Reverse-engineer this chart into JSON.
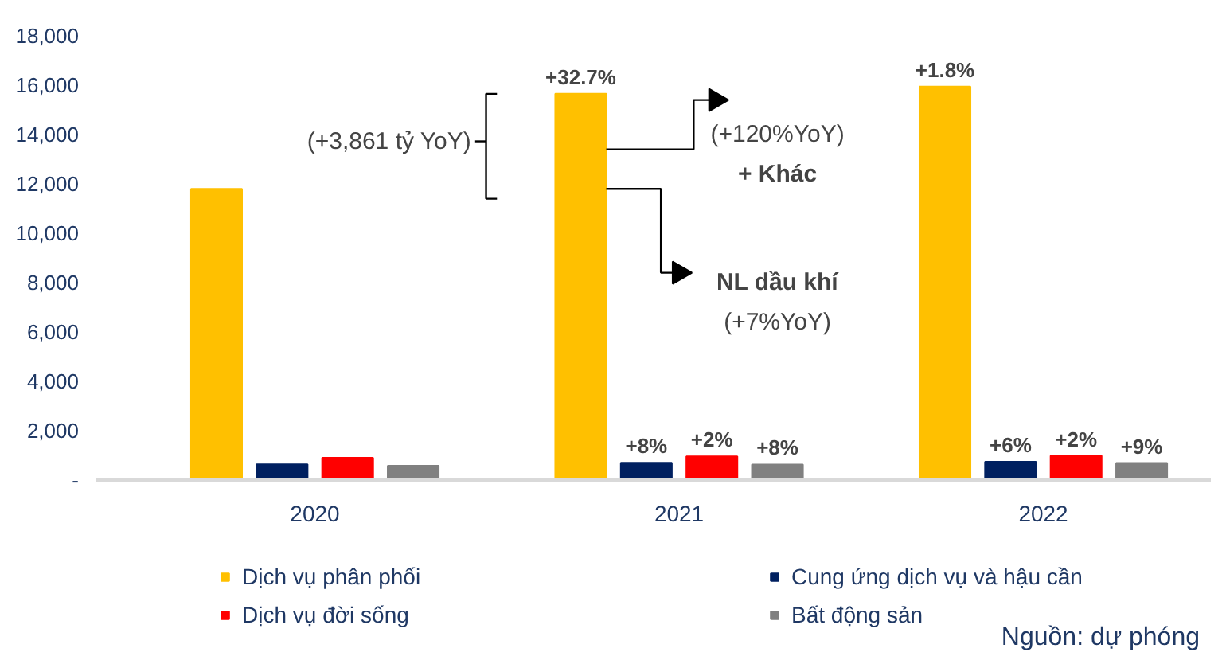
{
  "chart_data": {
    "type": "bar",
    "categories": [
      "2020",
      "2021",
      "2022"
    ],
    "series": [
      {
        "name": "Dịch vụ phân phối",
        "color": "#ffc000",
        "values": [
          11800,
          15650,
          15940
        ]
      },
      {
        "name": "Cung ứng dịch vụ và hậu cần",
        "color": "#002060",
        "values": [
          640,
          700,
          740
        ]
      },
      {
        "name": "Dịch vụ đời sống",
        "color": "#ff0000",
        "values": [
          900,
          960,
          980
        ]
      },
      {
        "name": "Bất động sản",
        "color": "#808080",
        "values": [
          580,
          630,
          690
        ]
      }
    ],
    "ylim": [
      0,
      18000
    ],
    "yticks": [
      {
        "value": 0,
        "label": "-"
      },
      {
        "value": 2000,
        "label": "2,000"
      },
      {
        "value": 4000,
        "label": "4,000"
      },
      {
        "value": 6000,
        "label": "6,000"
      },
      {
        "value": 8000,
        "label": "8,000"
      },
      {
        "value": 10000,
        "label": "10,000"
      },
      {
        "value": 12000,
        "label": "12,000"
      },
      {
        "value": 14000,
        "label": "14,000"
      },
      {
        "value": 16000,
        "label": "16,000"
      },
      {
        "value": 18000,
        "label": "18,000"
      }
    ],
    "legend": "bottom",
    "grid": false,
    "annotations": [
      "(+3,861 tỷ YoY)",
      "(+120%YoY)",
      "+ Khác",
      "NL dầu khí",
      "(+7%YoY)",
      "Nguồn: dự phóng",
      "+32.7%",
      "+8%",
      "+2%",
      "+8%",
      "+1.8%",
      "+6%",
      "+2%",
      "+9%"
    ]
  }
}
